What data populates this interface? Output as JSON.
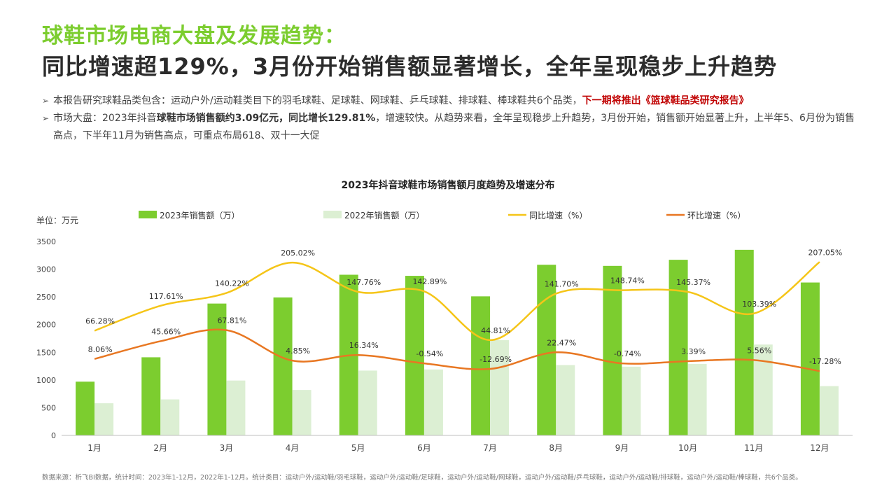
{
  "header": {
    "title_line1": "球鞋市场电商大盘及发展趋势：",
    "title_line2": "同比增速超129%，3月份开始销售额显著增长，全年呈现稳步上升趋势"
  },
  "bullets": [
    {
      "arrow": "➢",
      "parts": [
        {
          "text": "本报告研究球鞋品类包含：运动户外/运动鞋类目下的羽毛球鞋、足球鞋、网球鞋、乒乓球鞋、排球鞋、棒球鞋共6个品类，",
          "style": ""
        },
        {
          "text": "下一期将推出《篮球鞋品类研究报告》",
          "style": "red"
        }
      ]
    },
    {
      "arrow": "➢",
      "parts": [
        {
          "text": "市场大盘：2023年抖音",
          "style": ""
        },
        {
          "text": "球鞋市场销售额约3.09亿元，同比增长129.81%",
          "style": "bold"
        },
        {
          "text": "，增速较快。从趋势来看，全年呈现稳步上升趋势，3月份开始，销售额开始显著上升，上半年5、6月份为销售高点，下半年11月为销售高点，可重点布局618、双十一大促",
          "style": ""
        }
      ]
    }
  ],
  "chart_data": {
    "type": "bar",
    "title": "2023年抖音球鞋市场销售额月度趋势及增速分布",
    "unit_label": "单位：万元",
    "categories": [
      "1月",
      "2月",
      "3月",
      "4月",
      "5月",
      "6月",
      "7月",
      "8月",
      "9月",
      "10月",
      "11月",
      "12月"
    ],
    "ylim": [
      0,
      3500
    ],
    "yticks": [
      0,
      500,
      1000,
      1500,
      2000,
      2500,
      3000,
      3500
    ],
    "grid": false,
    "legend_position": "top",
    "series": [
      {
        "name": "2023年销售额（万）",
        "kind": "bar",
        "color": "#7ccd2f",
        "values": [
          970,
          1410,
          2380,
          2490,
          2900,
          2880,
          2510,
          3080,
          3060,
          3170,
          3350,
          2760
        ]
      },
      {
        "name": "2022年销售额（万）",
        "kind": "bar",
        "color": "#dcefd3",
        "values": [
          580,
          650,
          990,
          820,
          1170,
          1190,
          1720,
          1270,
          1240,
          1290,
          1640,
          890
        ]
      },
      {
        "name": "同比增速（%）",
        "kind": "line",
        "color": "#f5c518",
        "values": [
          66.28,
          117.61,
          140.22,
          205.02,
          147.76,
          142.89,
          44.81,
          141.7,
          148.74,
          145.37,
          103.39,
          207.05
        ],
        "labels": [
          "66.28%",
          "117.61%",
          "140.22%",
          "205.02%",
          "147.76%",
          "142.89%",
          "44.81%",
          "141.70%",
          "148.74%",
          "145.37%",
          "103.39%",
          "207.05%"
        ],
        "drawn_on_left_axis": [
          1890,
          2340,
          2570,
          3120,
          2590,
          2600,
          1720,
          2560,
          2620,
          2590,
          2200,
          3130
        ]
      },
      {
        "name": "环比增速（%）",
        "kind": "line",
        "color": "#e87722",
        "values": [
          8.06,
          45.66,
          67.81,
          4.85,
          16.34,
          -0.54,
          -12.69,
          22.47,
          -0.74,
          3.39,
          5.56,
          -17.28
        ],
        "labels": [
          "8.06%",
          "45.66%",
          "67.81%",
          "4.85%",
          "16.34%",
          "-0.54%",
          "-12.69%",
          "22.47%",
          "-0.74%",
          "3.39%",
          "5.56%",
          "-17.28%"
        ],
        "drawn_on_left_axis": [
          1380,
          1700,
          1900,
          1350,
          1450,
          1300,
          1200,
          1500,
          1300,
          1340,
          1360,
          1160
        ]
      }
    ]
  },
  "footnote": "数据来源：析飞BI数据，统计时间：2023年1-12月，2022年1-12月。统计类目：运动户外/运动鞋/羽毛球鞋，运动户外/运动鞋/足球鞋，运动户外/运动鞋/网球鞋，运动户外/运动鞋/乒乓球鞋，运动户外/运动鞋/排球鞋，运动户外/运动鞋/棒球鞋，共6个品类。"
}
